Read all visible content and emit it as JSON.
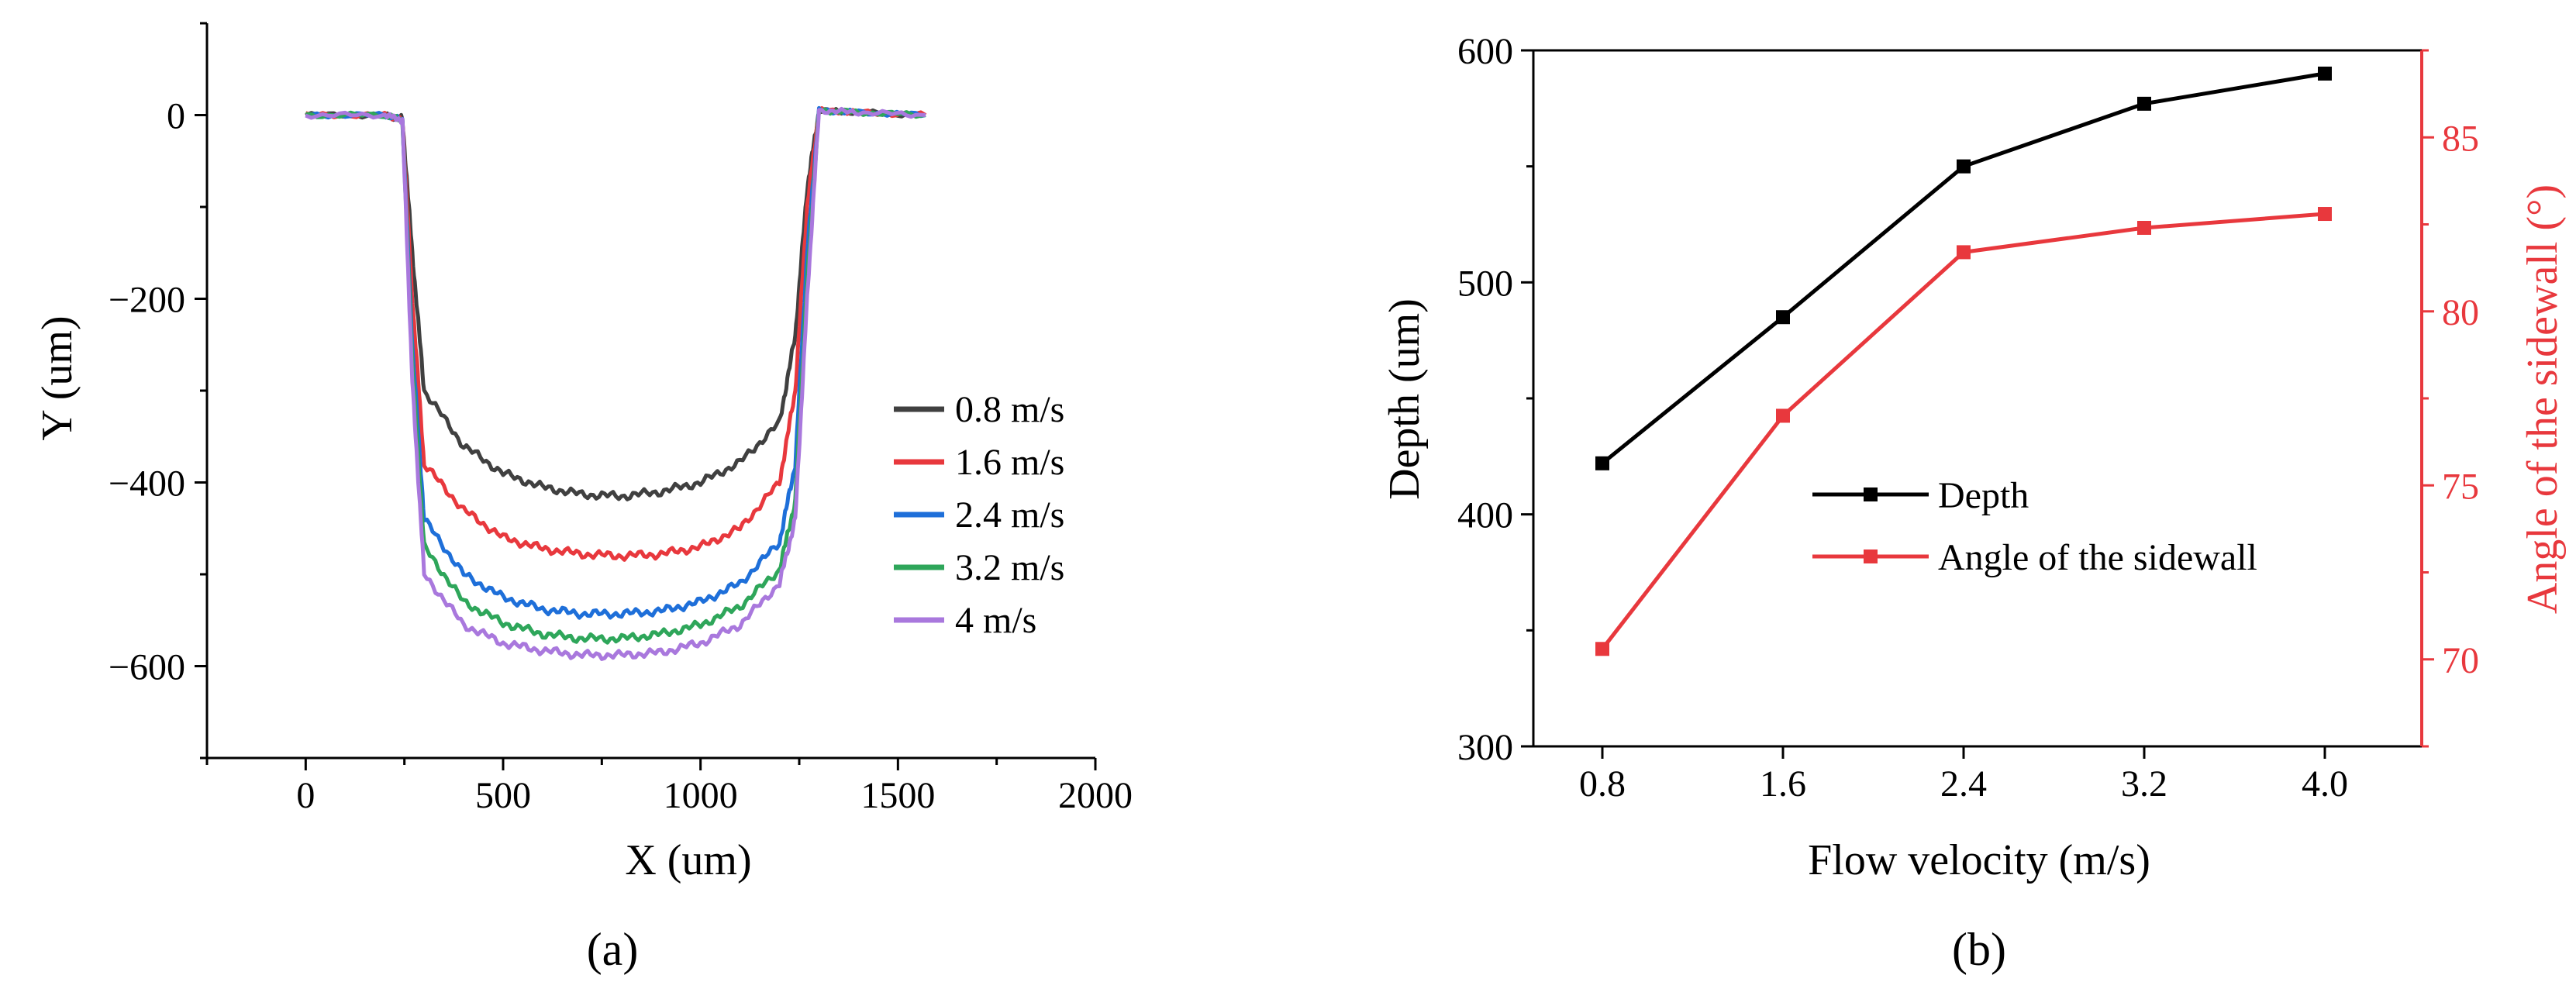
{
  "panel_labels": {
    "a": "(a)",
    "b": "(b)"
  },
  "colors": {
    "axis": "#000000",
    "right_axis": "#e8383d",
    "series_a": [
      "#404040",
      "#e8383d",
      "#1e6fd9",
      "#2ea65a",
      "#a978dd"
    ],
    "depth": "#000000",
    "angle": "#e8383d"
  },
  "chart_data": [
    {
      "type": "line",
      "panel": "a",
      "xlabel": "X (um)",
      "ylabel": "Y (um)",
      "xlim": [
        -250,
        2000
      ],
      "ylim": [
        -700,
        100
      ],
      "xticks": [
        0,
        500,
        1000,
        1500,
        2000
      ],
      "xtick_labels": [
        "0",
        "500",
        "1000",
        "1500",
        "2000"
      ],
      "yticks": [
        0,
        -200,
        -400,
        -600
      ],
      "ytick_labels": [
        "0",
        "−200",
        "−400",
        "−600"
      ],
      "legend_position": "center-right",
      "series": [
        {
          "name": "0.8 m/s",
          "x": [
            0,
            200,
            245,
            270,
            300,
            400,
            500,
            600,
            700,
            800,
            900,
            1000,
            1100,
            1200,
            1240,
            1270,
            1300,
            1400,
            1570
          ],
          "y": [
            0,
            0,
            -5,
            -150,
            -300,
            -360,
            -390,
            -405,
            -413,
            -415,
            -410,
            -400,
            -378,
            -335,
            -240,
            -80,
            5,
            3,
            0
          ]
        },
        {
          "name": "1.6 m/s",
          "x": [
            0,
            200,
            245,
            270,
            300,
            400,
            500,
            600,
            700,
            800,
            900,
            1000,
            1100,
            1200,
            1240,
            1270,
            1300,
            1400,
            1570
          ],
          "y": [
            0,
            0,
            -5,
            -200,
            -380,
            -430,
            -460,
            -472,
            -478,
            -480,
            -478,
            -470,
            -450,
            -400,
            -300,
            -100,
            5,
            3,
            0
          ]
        },
        {
          "name": "2.4 m/s",
          "x": [
            0,
            200,
            245,
            270,
            300,
            400,
            500,
            600,
            700,
            800,
            900,
            1000,
            1100,
            1200,
            1240,
            1270,
            1300,
            1400,
            1570
          ],
          "y": [
            0,
            0,
            -5,
            -250,
            -440,
            -500,
            -525,
            -538,
            -543,
            -543,
            -540,
            -530,
            -510,
            -465,
            -380,
            -150,
            5,
            3,
            0
          ]
        },
        {
          "name": "3.2 m/s",
          "x": [
            0,
            200,
            245,
            270,
            300,
            400,
            500,
            600,
            700,
            800,
            900,
            1000,
            1100,
            1200,
            1240,
            1270,
            1300,
            1400,
            1570
          ],
          "y": [
            0,
            0,
            -5,
            -270,
            -470,
            -530,
            -553,
            -565,
            -570,
            -570,
            -565,
            -555,
            -535,
            -495,
            -420,
            -180,
            5,
            3,
            0
          ]
        },
        {
          "name": "4 m/s",
          "x": [
            0,
            200,
            245,
            270,
            300,
            400,
            500,
            600,
            700,
            800,
            900,
            1000,
            1100,
            1200,
            1240,
            1270,
            1300,
            1400,
            1570
          ],
          "y": [
            0,
            0,
            -5,
            -290,
            -500,
            -555,
            -575,
            -583,
            -588,
            -588,
            -585,
            -575,
            -555,
            -510,
            -440,
            -200,
            5,
            3,
            0
          ]
        }
      ]
    },
    {
      "type": "line",
      "panel": "b",
      "xlabel": "Flow velocity (m/s)",
      "ylabel": "Depth (um)",
      "y2label": "Angle of the sidewall (°)",
      "categories": [
        "0.8",
        "1.6",
        "2.4",
        "3.2",
        "4.0"
      ],
      "ylim": [
        300,
        600
      ],
      "yticks": [
        300,
        400,
        500,
        600
      ],
      "ytick_labels": [
        "300",
        "400",
        "500",
        "600"
      ],
      "y2lim": [
        67.5,
        87.5
      ],
      "y2ticks": [
        70,
        75,
        80,
        85
      ],
      "y2tick_labels": [
        "70",
        "75",
        "80",
        "85"
      ],
      "legend_position": "center",
      "series": [
        {
          "name": "Depth",
          "axis": "left",
          "values": [
            422,
            485,
            550,
            577,
            590
          ]
        },
        {
          "name": "Angle of the sidewall",
          "axis": "right",
          "values": [
            70.3,
            77.0,
            81.7,
            82.4,
            82.8
          ]
        }
      ]
    }
  ]
}
